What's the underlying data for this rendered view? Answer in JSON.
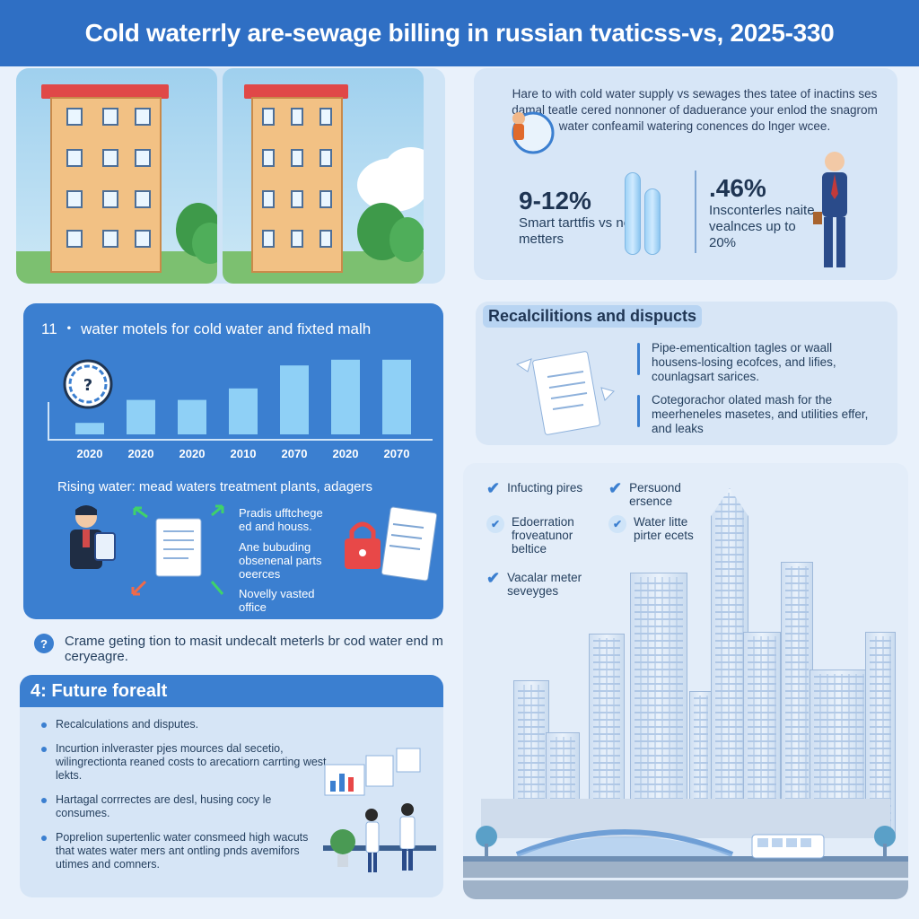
{
  "header": {
    "title": "Cold waterrly are-sewage billing in russian tvaticss-vs, 2025-330"
  },
  "meters_panel": {
    "intro": "Hare to with cold water supply vs sewages thes tatee of inactins ses damal teatle cered nonnoner of daduerance your enlod the snagrom water confeamil watering conences do lnger wcee.",
    "stat_left": {
      "value": "9-12%",
      "label": "Smart tarttfis vs no metters"
    },
    "stat_right": {
      "value": ".46%",
      "label": "Insconterles naite vealnces up to 20%"
    }
  },
  "chart_panel": {
    "title": "11 ・ water motels for cold water and fixted malh",
    "subtitle": "Rising water: mead waters treatment plants, adagers",
    "flow_labels": [
      "Pradis ufftchege ed and houss.",
      "Ane bubuding obsenenal parts oeerces",
      "Novelly vasted office"
    ]
  },
  "chart_data": {
    "type": "bar",
    "categories": [
      "2020",
      "2020",
      "2020",
      "2010",
      "2070",
      "2020",
      "2070"
    ],
    "values": [
      1,
      3,
      3,
      4,
      6,
      6.5,
      6.5
    ],
    "title": "11 ・ water motels for cold water and fixted malh",
    "xlabel": "",
    "ylabel": "",
    "ylim": [
      0,
      7.5
    ],
    "grid": false
  },
  "note": {
    "icon": "question-icon",
    "text": "Crame geting tion to masit undecalt meterls br cod water end m ceryeagre."
  },
  "future_panel": {
    "title": "4: Future forealt",
    "items": [
      "Recalculations and disputes.",
      "Incurtion inlveraster pjes mources dal secetio, wilingrectionta reaned costs to arecatiorn carrting west lekts.",
      "Hartagal corrrectes are desl, husing cocy le consumes.",
      "Poprelion supertenlic water consmeed high wacuts that wates water mers ant ontling pnds avemifors utimes and comners."
    ]
  },
  "recalc_panel": {
    "title": "Recalcilitions and dispucts",
    "items": [
      "Pipe-ementicaltion tagles or waall housens-losing ecofces, and lifies, counlagsart sarices.",
      "Cotegorachor olated mash for the meerheneles masetes, and utilities effer, and leaks"
    ]
  },
  "city_panel": {
    "checks": [
      "Infucting pires",
      "Persuond ersence",
      "Edoerration froveatunor beltice",
      "Water litte pirter ecets",
      "Vacalar meter seveyges"
    ]
  },
  "colors": {
    "banner": "#2f6fc4",
    "accent": "#3b7fd0",
    "bar": "#8fd0f6"
  }
}
